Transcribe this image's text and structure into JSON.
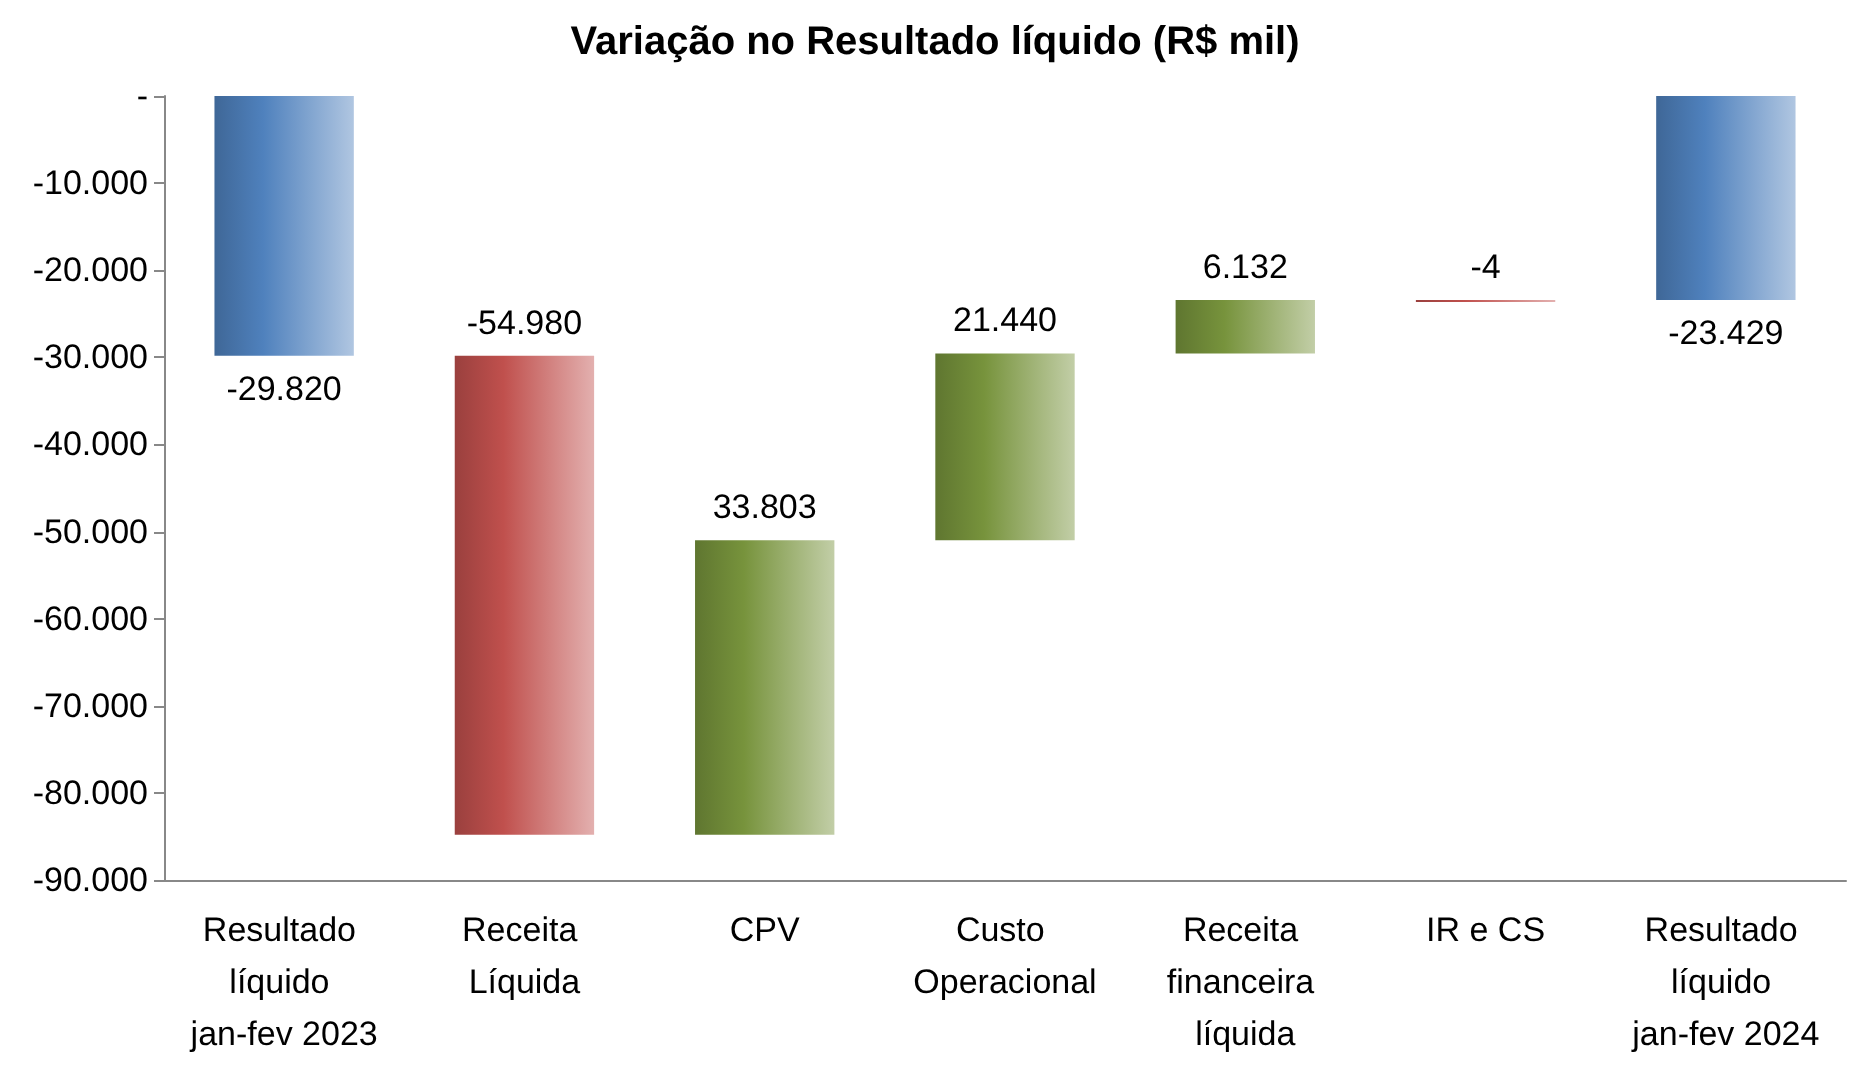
{
  "chart_data": {
    "type": "bar",
    "title": "Variação no Resultado líquido (R$ mil)",
    "categories": [
      "Resultado líquido jan-fev 2023",
      "Receita Líquida",
      "CPV",
      "Custo Operacional",
      "Receita financeira líquida",
      "IR e CS",
      "Resultado líquido jan-fev 2024"
    ],
    "values": [
      -29820,
      -54980,
      33803,
      21440,
      6132,
      -4,
      -23429
    ],
    "base": [
      0,
      -29820,
      -84800,
      -50997,
      -29557,
      -23425,
      0
    ],
    "colors": [
      "#4f81bd",
      "#c0504d",
      "#77933c",
      "#77933c",
      "#77933c",
      "#c0504d",
      "#4f81bd"
    ],
    "value_labels": [
      "-29.820",
      "-54.980",
      "33.803",
      "21.440",
      "6.132",
      "-4",
      "-23.429"
    ],
    "ylim": [
      -90000,
      0
    ],
    "yticks": [
      {
        "value": -90000,
        "label": "-90.000"
      },
      {
        "value": -80000,
        "label": "-80.000"
      },
      {
        "value": -70000,
        "label": "-70.000"
      },
      {
        "value": -60000,
        "label": "-60.000"
      },
      {
        "value": -50000,
        "label": "-50.000"
      },
      {
        "value": -40000,
        "label": "-40.000"
      },
      {
        "value": -30000,
        "label": "-30.000"
      },
      {
        "value": -20000,
        "label": "-20.000"
      },
      {
        "value": -10000,
        "label": "-10.000"
      },
      {
        "value": 0,
        "label": "-"
      }
    ],
    "grid": false
  }
}
